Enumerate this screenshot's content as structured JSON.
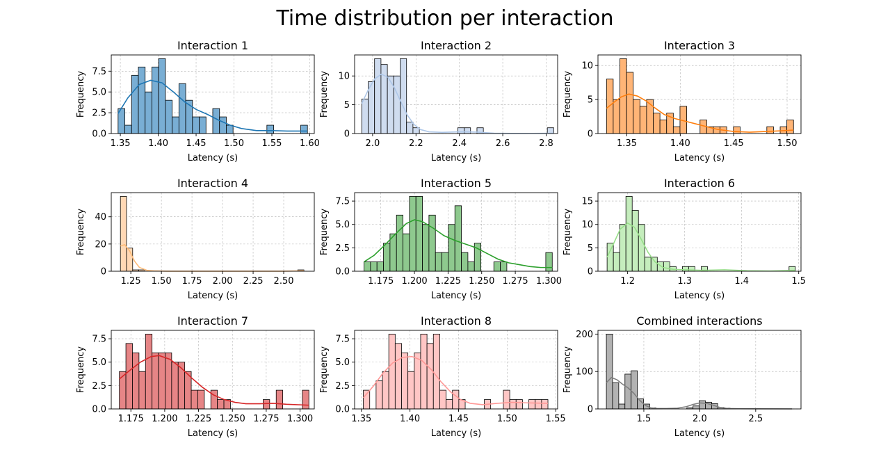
{
  "figure": {
    "title": "Time distribution per interaction"
  },
  "chart_data": [
    {
      "type": "histogram",
      "title": "Interaction 1",
      "xlabel": "Latency (s)",
      "ylabel": "Frequency",
      "color": "#1f77b4",
      "bar_color": "#79aed4",
      "xlim": [
        1.338,
        1.606
      ],
      "ylim": [
        0,
        9.45
      ],
      "xticks": [
        1.35,
        1.4,
        1.45,
        1.5,
        1.55,
        1.6
      ],
      "xticklabels": [
        "1.35",
        "1.40",
        "1.45",
        "1.50",
        "1.55",
        "1.60"
      ],
      "yticks": [
        0,
        2.5,
        5.0,
        7.5
      ],
      "yticklabels": [
        "0.0",
        "2.5",
        "5.0",
        "7.5"
      ],
      "bin_range": [
        1.347,
        1.597
      ],
      "counts": [
        3,
        1,
        7,
        8,
        5,
        8,
        9,
        4,
        2,
        6,
        4,
        2,
        2,
        0,
        3,
        2,
        1,
        0,
        0,
        0,
        0,
        0,
        1,
        0,
        0,
        0,
        0,
        1
      ],
      "kde": [
        [
          1.347,
          2.4
        ],
        [
          1.36,
          4.3
        ],
        [
          1.375,
          5.9
        ],
        [
          1.39,
          6.4
        ],
        [
          1.405,
          6.1
        ],
        [
          1.42,
          5.0
        ],
        [
          1.435,
          3.8
        ],
        [
          1.45,
          2.9
        ],
        [
          1.465,
          2.3
        ],
        [
          1.48,
          1.6
        ],
        [
          1.495,
          1.0
        ],
        [
          1.51,
          0.6
        ],
        [
          1.53,
          0.35
        ],
        [
          1.55,
          0.35
        ],
        [
          1.57,
          0.3
        ],
        [
          1.597,
          0.3
        ]
      ]
    },
    {
      "type": "histogram",
      "title": "Interaction 2",
      "xlabel": "Latency (s)",
      "ylabel": "Frequency",
      "color": "#aec7e8",
      "bar_color": "#cfdcef",
      "xlim": [
        1.917,
        2.853
      ],
      "ylim": [
        0,
        13.65
      ],
      "xticks": [
        2.0,
        2.2,
        2.4,
        2.6,
        2.8
      ],
      "xticklabels": [
        "2.0",
        "2.2",
        "2.4",
        "2.6",
        "2.8"
      ],
      "yticks": [
        0,
        5,
        10
      ],
      "yticklabels": [
        "0",
        "5",
        "10"
      ],
      "bin_range": [
        1.95,
        2.835
      ],
      "counts": [
        6,
        9,
        13,
        12,
        10,
        10,
        13,
        2,
        1,
        0,
        0,
        0,
        0,
        0,
        0,
        1,
        1,
        0,
        1,
        0,
        0,
        0,
        0,
        0,
        0,
        0,
        0,
        0,
        0,
        1
      ],
      "kde": [
        [
          1.95,
          5.2
        ],
        [
          1.98,
          7.6
        ],
        [
          2.01,
          9.5
        ],
        [
          2.04,
          10.3
        ],
        [
          2.07,
          9.8
        ],
        [
          2.1,
          8.0
        ],
        [
          2.13,
          5.5
        ],
        [
          2.16,
          3.2
        ],
        [
          2.19,
          1.6
        ],
        [
          2.22,
          0.7
        ],
        [
          2.26,
          0.3
        ],
        [
          2.32,
          0.2
        ],
        [
          2.4,
          0.3
        ],
        [
          2.48,
          0.25
        ],
        [
          2.56,
          0.05
        ],
        [
          2.64,
          0.02
        ],
        [
          2.74,
          0.03
        ],
        [
          2.835,
          0.05
        ]
      ]
    },
    {
      "type": "histogram",
      "title": "Interaction 3",
      "xlabel": "Latency (s)",
      "ylabel": "Frequency",
      "color": "#ff7f0e",
      "bar_color": "#ffb577",
      "xlim": [
        1.323,
        1.513
      ],
      "ylim": [
        0,
        11.55
      ],
      "xticks": [
        1.35,
        1.4,
        1.45,
        1.5
      ],
      "xticklabels": [
        "1.35",
        "1.40",
        "1.45",
        "1.50"
      ],
      "yticks": [
        0,
        5,
        10
      ],
      "yticklabels": [
        "0",
        "5",
        "10"
      ],
      "bin_range": [
        1.331,
        1.506
      ],
      "counts": [
        8,
        5,
        11,
        9,
        5,
        4,
        5,
        3,
        2,
        3,
        1,
        4,
        0,
        0,
        2,
        1,
        1,
        1,
        0,
        1,
        0,
        0,
        0,
        0,
        1,
        0,
        1,
        2
      ],
      "kde": [
        [
          1.331,
          3.7
        ],
        [
          1.338,
          4.6
        ],
        [
          1.345,
          5.4
        ],
        [
          1.352,
          5.8
        ],
        [
          1.36,
          5.5
        ],
        [
          1.368,
          4.8
        ],
        [
          1.376,
          3.8
        ],
        [
          1.385,
          2.8
        ],
        [
          1.395,
          2.2
        ],
        [
          1.405,
          1.8
        ],
        [
          1.415,
          1.4
        ],
        [
          1.425,
          1.0
        ],
        [
          1.435,
          0.6
        ],
        [
          1.45,
          0.3
        ],
        [
          1.465,
          0.2
        ],
        [
          1.48,
          0.3
        ],
        [
          1.495,
          0.4
        ],
        [
          1.506,
          0.5
        ]
      ]
    },
    {
      "type": "histogram",
      "title": "Interaction 4",
      "xlabel": "Latency (s)",
      "ylabel": "Frequency",
      "color": "#ffbb78",
      "bar_color": "#ffd8b5",
      "xlim": [
        1.09,
        2.75
      ],
      "ylim": [
        0,
        57.75
      ],
      "xticks": [
        1.25,
        1.5,
        1.75,
        2.0,
        2.25,
        2.5
      ],
      "xticklabels": [
        "1.25",
        "1.50",
        "1.75",
        "2.00",
        "2.25",
        "2.50"
      ],
      "yticks": [
        0,
        20,
        40
      ],
      "yticklabels": [
        "0",
        "20",
        "40"
      ],
      "bin_range": [
        1.165,
        2.665
      ],
      "counts": [
        55,
        17,
        1,
        1,
        0,
        0,
        0,
        0,
        0,
        0,
        0,
        0,
        0,
        0,
        0,
        0,
        0,
        0,
        0,
        0,
        0,
        0,
        0,
        0,
        0,
        0,
        0,
        0,
        0,
        1
      ],
      "kde": [
        [
          1.165,
          18.5
        ],
        [
          1.2,
          19.5
        ],
        [
          1.24,
          15.0
        ],
        [
          1.28,
          7.5
        ],
        [
          1.32,
          2.8
        ],
        [
          1.38,
          0.7
        ],
        [
          1.45,
          0.2
        ],
        [
          1.55,
          0.05
        ],
        [
          1.8,
          0.02
        ],
        [
          2.2,
          0.02
        ],
        [
          2.5,
          0.05
        ],
        [
          2.665,
          0.3
        ]
      ]
    },
    {
      "type": "histogram",
      "title": "Interaction 5",
      "xlabel": "Latency (s)",
      "ylabel": "Frequency",
      "color": "#2ca02c",
      "bar_color": "#8ec98e",
      "xlim": [
        1.1555,
        1.3065
      ],
      "ylim": [
        0,
        8.4
      ],
      "xticks": [
        1.175,
        1.2,
        1.225,
        1.25,
        1.275,
        1.3
      ],
      "xticklabels": [
        "1.175",
        "1.200",
        "1.225",
        "1.250",
        "1.275",
        "1.300"
      ],
      "yticks": [
        0,
        2.5,
        5.0,
        7.5
      ],
      "yticklabels": [
        "0.0",
        "2.5",
        "5.0",
        "7.5"
      ],
      "bin_range": [
        1.1625,
        1.3025
      ],
      "counts": [
        1,
        1,
        1,
        3,
        4,
        6,
        4,
        8,
        8,
        5,
        6,
        2,
        2,
        5,
        7,
        2,
        1,
        3,
        0,
        0,
        1,
        1,
        0,
        0,
        0,
        0,
        0,
        0,
        2
      ],
      "kde": [
        [
          1.1625,
          1.0
        ],
        [
          1.17,
          1.7
        ],
        [
          1.178,
          2.8
        ],
        [
          1.186,
          4.0
        ],
        [
          1.194,
          5.1
        ],
        [
          1.2,
          5.5
        ],
        [
          1.206,
          5.3
        ],
        [
          1.214,
          4.6
        ],
        [
          1.222,
          3.8
        ],
        [
          1.23,
          3.3
        ],
        [
          1.238,
          2.9
        ],
        [
          1.246,
          2.5
        ],
        [
          1.254,
          1.9
        ],
        [
          1.262,
          1.3
        ],
        [
          1.27,
          0.9
        ],
        [
          1.278,
          0.7
        ],
        [
          1.286,
          0.5
        ],
        [
          1.294,
          0.4
        ],
        [
          1.3025,
          0.4
        ]
      ]
    },
    {
      "type": "histogram",
      "title": "Interaction 6",
      "xlabel": "Latency (s)",
      "ylabel": "Frequency",
      "color": "#98df8a",
      "bar_color": "#c5edbd",
      "xlim": [
        1.148,
        1.504
      ],
      "ylim": [
        0,
        16.8
      ],
      "xticks": [
        1.2,
        1.3,
        1.4,
        1.5
      ],
      "xticklabels": [
        "1.2",
        "1.3",
        "1.4",
        "1.5"
      ],
      "yticks": [
        0,
        5,
        10,
        15
      ],
      "yticklabels": [
        "0",
        "5",
        "10",
        "15"
      ],
      "bin_range": [
        1.164,
        1.494
      ],
      "counts": [
        6,
        4,
        10,
        16,
        13,
        10,
        3,
        3,
        2,
        2,
        1,
        0,
        1,
        1,
        0,
        1,
        0,
        0,
        0,
        0,
        0,
        0,
        0,
        0,
        0,
        0,
        0,
        0,
        0,
        1
      ],
      "kde": [
        [
          1.164,
          3.0
        ],
        [
          1.175,
          5.8
        ],
        [
          1.187,
          9.0
        ],
        [
          1.2,
          10.3
        ],
        [
          1.212,
          9.4
        ],
        [
          1.224,
          6.8
        ],
        [
          1.236,
          4.0
        ],
        [
          1.248,
          2.0
        ],
        [
          1.262,
          0.8
        ],
        [
          1.28,
          0.4
        ],
        [
          1.3,
          0.3
        ],
        [
          1.33,
          0.2
        ],
        [
          1.37,
          0.3
        ],
        [
          1.41,
          0.1
        ],
        [
          1.45,
          0.05
        ],
        [
          1.494,
          0.2
        ]
      ]
    },
    {
      "type": "histogram",
      "title": "Interaction 7",
      "xlabel": "Latency (s)",
      "ylabel": "Frequency",
      "color": "#d62728",
      "bar_color": "#e68586",
      "xlim": [
        1.1605,
        1.3105
      ],
      "ylim": [
        0,
        8.4
      ],
      "xticks": [
        1.175,
        1.2,
        1.225,
        1.25,
        1.275,
        1.3
      ],
      "xticklabels": [
        "1.175",
        "1.200",
        "1.225",
        "1.250",
        "1.275",
        "1.300"
      ],
      "yticks": [
        0,
        2.5,
        5.0,
        7.5
      ],
      "yticklabels": [
        "0.0",
        "2.5",
        "5.0",
        "7.5"
      ],
      "bin_range": [
        1.1665,
        1.3065
      ],
      "counts": [
        4,
        7,
        6,
        4,
        8,
        6,
        6,
        6,
        5,
        5,
        4,
        2,
        2,
        0,
        2,
        1,
        1,
        0,
        0,
        0,
        0,
        0,
        1,
        0,
        2,
        0,
        0,
        0,
        2
      ],
      "kde": [
        [
          1.1665,
          3.2
        ],
        [
          1.174,
          4.1
        ],
        [
          1.182,
          5.0
        ],
        [
          1.19,
          5.6
        ],
        [
          1.196,
          5.7
        ],
        [
          1.204,
          5.3
        ],
        [
          1.212,
          4.4
        ],
        [
          1.22,
          3.3
        ],
        [
          1.228,
          2.3
        ],
        [
          1.236,
          1.5
        ],
        [
          1.244,
          1.0
        ],
        [
          1.252,
          0.7
        ],
        [
          1.26,
          0.55
        ],
        [
          1.27,
          0.55
        ],
        [
          1.28,
          0.6
        ],
        [
          1.29,
          0.5
        ],
        [
          1.3065,
          0.4
        ]
      ]
    },
    {
      "type": "histogram",
      "title": "Interaction 8",
      "xlabel": "Latency (s)",
      "ylabel": "Frequency",
      "color": "#ff9896",
      "bar_color": "#ffc6c5",
      "xlim": [
        1.343,
        1.552
      ],
      "ylim": [
        0,
        8.4
      ],
      "xticks": [
        1.35,
        1.4,
        1.45,
        1.5,
        1.55
      ],
      "xticklabels": [
        "1.35",
        "1.40",
        "1.45",
        "1.50",
        "1.55"
      ],
      "yticks": [
        0,
        2.5,
        5.0,
        7.5
      ],
      "yticklabels": [
        "0.0",
        "2.5",
        "5.0",
        "7.5"
      ],
      "bin_range": [
        1.352,
        1.542
      ],
      "counts": [
        2,
        0,
        3,
        4,
        8,
        7,
        6,
        4,
        6,
        8,
        7,
        8,
        2,
        1,
        2,
        1,
        0,
        0,
        0,
        1,
        0,
        0,
        2,
        1,
        1,
        0,
        1,
        1,
        1
      ],
      "kde": [
        [
          1.352,
          1.2
        ],
        [
          1.362,
          2.4
        ],
        [
          1.372,
          3.8
        ],
        [
          1.382,
          4.9
        ],
        [
          1.392,
          5.5
        ],
        [
          1.402,
          5.6
        ],
        [
          1.412,
          5.2
        ],
        [
          1.422,
          4.2
        ],
        [
          1.432,
          2.9
        ],
        [
          1.442,
          1.8
        ],
        [
          1.452,
          1.0
        ],
        [
          1.462,
          0.6
        ],
        [
          1.475,
          0.45
        ],
        [
          1.49,
          0.6
        ],
        [
          1.505,
          0.7
        ],
        [
          1.52,
          0.65
        ],
        [
          1.542,
          0.6
        ]
      ]
    },
    {
      "type": "histogram",
      "title": "Combined interactions",
      "xlabel": "Latency (s)",
      "ylabel": "Frequency",
      "color": "#7f7f7f",
      "bar_color": "#b2b2b2",
      "xlim": [
        1.09,
        2.905
      ],
      "ylim": [
        0,
        210
      ],
      "xticks": [
        1.5,
        2.0,
        2.5
      ],
      "xticklabels": [
        "1.5",
        "2.0",
        "2.5"
      ],
      "yticks": [
        0,
        100,
        200
      ],
      "yticklabels": [
        "0",
        "100",
        "200"
      ],
      "bin_range": [
        1.165,
        2.825
      ],
      "counts": [
        200,
        70,
        13,
        93,
        102,
        27,
        13,
        3,
        1,
        0,
        0,
        0,
        0,
        3,
        8,
        22,
        18,
        14,
        4,
        2,
        1,
        0,
        0,
        0,
        0,
        0,
        0,
        0,
        0,
        0
      ],
      "kde": [
        [
          1.165,
          70
        ],
        [
          1.21,
          84
        ],
        [
          1.26,
          78
        ],
        [
          1.31,
          66
        ],
        [
          1.36,
          56
        ],
        [
          1.41,
          42
        ],
        [
          1.46,
          24
        ],
        [
          1.51,
          10
        ],
        [
          1.56,
          3
        ],
        [
          1.62,
          1
        ],
        [
          1.7,
          1
        ],
        [
          1.8,
          2
        ],
        [
          1.88,
          6
        ],
        [
          1.94,
          12
        ],
        [
          2.0,
          16
        ],
        [
          2.06,
          15
        ],
        [
          2.12,
          10
        ],
        [
          2.18,
          4
        ],
        [
          2.25,
          1
        ],
        [
          2.35,
          0.5
        ],
        [
          2.5,
          0.3
        ],
        [
          2.825,
          0.1
        ]
      ]
    }
  ]
}
